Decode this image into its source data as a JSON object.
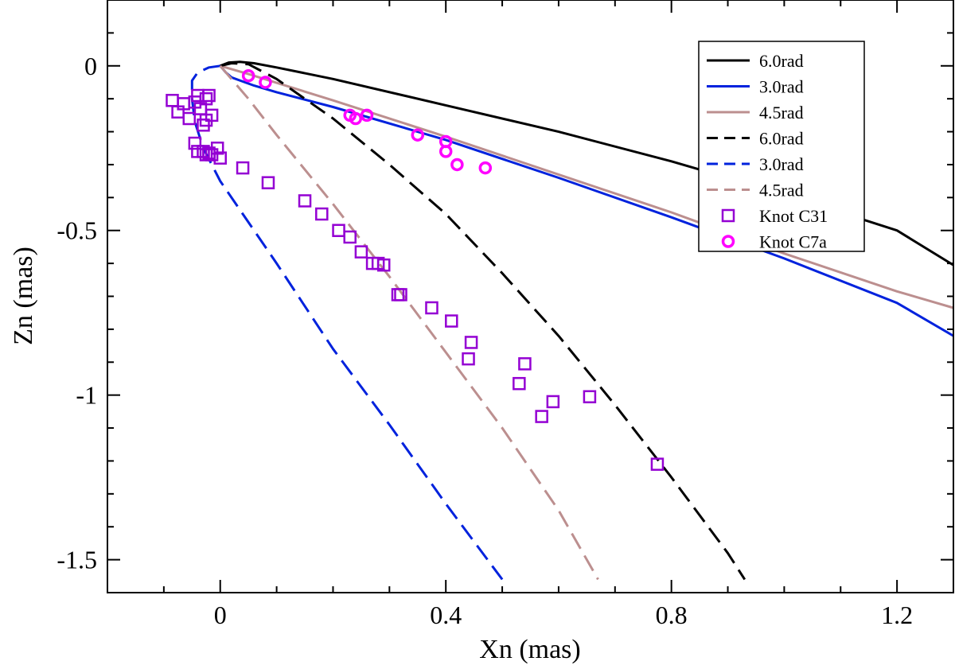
{
  "chart_data": {
    "type": "line",
    "title": "",
    "xlabel": "Xn (mas)",
    "ylabel": "Zn (mas)",
    "xlim": [
      -0.2,
      1.3
    ],
    "ylim": [
      -1.6,
      0.2
    ],
    "x_ticks": [
      0,
      0.4,
      0.8,
      1.2
    ],
    "x_tick_labels": [
      "0",
      "0.4",
      "0.8",
      "1.2"
    ],
    "x_minor_ticks": [
      -0.1,
      0.1,
      0.2,
      0.3,
      0.5,
      0.6,
      0.7,
      0.9,
      1.0,
      1.1
    ],
    "y_ticks": [
      0,
      -0.5,
      -1,
      -1.5
    ],
    "y_tick_labels": [
      "0",
      "-0.5",
      "-1",
      "-1.5"
    ],
    "y_minor_ticks": [
      0.1,
      -0.1,
      -0.2,
      -0.3,
      -0.4,
      -0.6,
      -0.7,
      -0.8,
      -0.9,
      -1.1,
      -1.2,
      -1.3,
      -1.4
    ],
    "legend_position": "top-right",
    "series": [
      {
        "name": "6.0rad",
        "style": "solid",
        "color": "#000000",
        "points": [
          [
            0,
            0
          ],
          [
            0.015,
            0.01
          ],
          [
            0.035,
            0.012
          ],
          [
            0.06,
            0.008
          ],
          [
            0.1,
            -0.005
          ],
          [
            0.2,
            -0.04
          ],
          [
            0.4,
            -0.12
          ],
          [
            0.6,
            -0.2
          ],
          [
            0.8,
            -0.29
          ],
          [
            1.0,
            -0.39
          ],
          [
            1.2,
            -0.5
          ],
          [
            1.3,
            -0.605
          ]
        ]
      },
      {
        "name": "3.0rad",
        "style": "solid",
        "color": "#0022dd",
        "points": [
          [
            0,
            0
          ],
          [
            0.01,
            -0.02
          ],
          [
            0.02,
            -0.035
          ],
          [
            0.06,
            -0.06
          ],
          [
            0.1,
            -0.08
          ],
          [
            0.2,
            -0.125
          ],
          [
            0.4,
            -0.225
          ],
          [
            0.6,
            -0.34
          ],
          [
            0.8,
            -0.46
          ],
          [
            1.0,
            -0.585
          ],
          [
            1.2,
            -0.72
          ],
          [
            1.3,
            -0.82
          ]
        ]
      },
      {
        "name": "4.5rad",
        "style": "solid",
        "color": "#bc8f8f",
        "points": [
          [
            0,
            0
          ],
          [
            0.05,
            -0.025
          ],
          [
            0.2,
            -0.105
          ],
          [
            0.4,
            -0.215
          ],
          [
            0.6,
            -0.33
          ],
          [
            0.8,
            -0.445
          ],
          [
            1.0,
            -0.57
          ],
          [
            1.2,
            -0.685
          ],
          [
            1.3,
            -0.735
          ]
        ]
      },
      {
        "name": "6.0rad",
        "style": "dashed",
        "color": "#000000",
        "points": [
          [
            0,
            0
          ],
          [
            0.02,
            0.008
          ],
          [
            0.05,
            0.005
          ],
          [
            0.1,
            -0.04
          ],
          [
            0.2,
            -0.16
          ],
          [
            0.3,
            -0.3
          ],
          [
            0.4,
            -0.45
          ],
          [
            0.5,
            -0.63
          ],
          [
            0.6,
            -0.82
          ],
          [
            0.7,
            -1.03
          ],
          [
            0.8,
            -1.25
          ],
          [
            0.9,
            -1.48
          ],
          [
            0.93,
            -1.56
          ]
        ]
      },
      {
        "name": "3.0rad",
        "style": "dashed",
        "color": "#0022dd",
        "points": [
          [
            0,
            0
          ],
          [
            -0.02,
            -0.005
          ],
          [
            -0.04,
            -0.02
          ],
          [
            -0.05,
            -0.045
          ],
          [
            -0.05,
            -0.1
          ],
          [
            -0.045,
            -0.17
          ],
          [
            -0.03,
            -0.25
          ],
          [
            0,
            -0.35
          ],
          [
            0.1,
            -0.6
          ],
          [
            0.2,
            -0.86
          ],
          [
            0.3,
            -1.09
          ],
          [
            0.4,
            -1.33
          ],
          [
            0.5,
            -1.56
          ]
        ]
      },
      {
        "name": "4.5rad",
        "style": "dashed",
        "color": "#bc8f8f",
        "points": [
          [
            0,
            0
          ],
          [
            0.05,
            -0.1
          ],
          [
            0.1,
            -0.21
          ],
          [
            0.2,
            -0.42
          ],
          [
            0.3,
            -0.64
          ],
          [
            0.4,
            -0.87
          ],
          [
            0.5,
            -1.1
          ],
          [
            0.6,
            -1.35
          ],
          [
            0.67,
            -1.56
          ]
        ]
      },
      {
        "name": "Knot  C31",
        "style": "square",
        "color": "#9400d3",
        "points": [
          [
            -0.085,
            -0.105
          ],
          [
            -0.075,
            -0.14
          ],
          [
            -0.065,
            -0.115
          ],
          [
            -0.055,
            -0.16
          ],
          [
            -0.045,
            -0.11
          ],
          [
            -0.04,
            -0.09
          ],
          [
            -0.035,
            -0.13
          ],
          [
            -0.025,
            -0.1
          ],
          [
            -0.02,
            -0.09
          ],
          [
            -0.03,
            -0.18
          ],
          [
            -0.025,
            -0.165
          ],
          [
            -0.015,
            -0.15
          ],
          [
            -0.045,
            -0.235
          ],
          [
            -0.04,
            -0.26
          ],
          [
            -0.03,
            -0.26
          ],
          [
            -0.025,
            -0.27
          ],
          [
            -0.02,
            -0.265
          ],
          [
            -0.015,
            -0.27
          ],
          [
            -0.005,
            -0.25
          ],
          [
            0.0,
            -0.28
          ],
          [
            0.04,
            -0.31
          ],
          [
            0.085,
            -0.355
          ],
          [
            0.15,
            -0.41
          ],
          [
            0.18,
            -0.45
          ],
          [
            0.21,
            -0.5
          ],
          [
            0.23,
            -0.52
          ],
          [
            0.25,
            -0.565
          ],
          [
            0.27,
            -0.6
          ],
          [
            0.28,
            -0.6
          ],
          [
            0.29,
            -0.605
          ],
          [
            0.315,
            -0.695
          ],
          [
            0.32,
            -0.695
          ],
          [
            0.375,
            -0.735
          ],
          [
            0.41,
            -0.775
          ],
          [
            0.445,
            -0.84
          ],
          [
            0.44,
            -0.89
          ],
          [
            0.53,
            -0.965
          ],
          [
            0.54,
            -0.905
          ],
          [
            0.57,
            -1.065
          ],
          [
            0.59,
            -1.02
          ],
          [
            0.655,
            -1.005
          ],
          [
            0.775,
            -1.21
          ]
        ]
      },
      {
        "name": "Knot C7a",
        "style": "circle",
        "color": "#ff00ff",
        "points": [
          [
            0.05,
            -0.03
          ],
          [
            0.08,
            -0.05
          ],
          [
            0.23,
            -0.15
          ],
          [
            0.24,
            -0.16
          ],
          [
            0.26,
            -0.15
          ],
          [
            0.35,
            -0.21
          ],
          [
            0.4,
            -0.23
          ],
          [
            0.4,
            -0.26
          ],
          [
            0.42,
            -0.3
          ],
          [
            0.47,
            -0.31
          ]
        ]
      }
    ]
  }
}
